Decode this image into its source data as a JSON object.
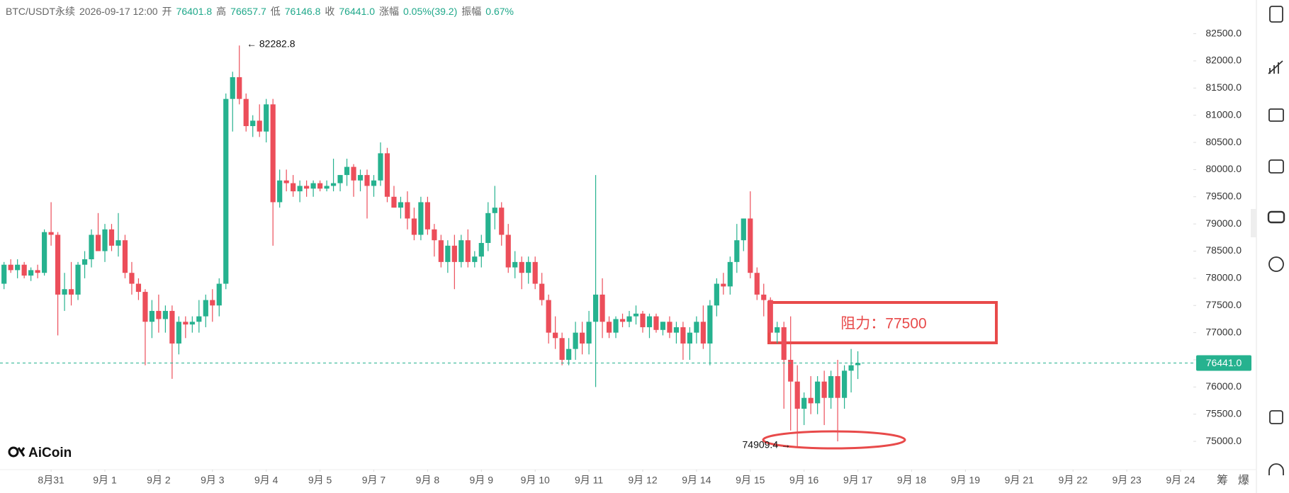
{
  "header": {
    "symbol": "BTC/USDT永续",
    "time": "2026-09-17 12:00",
    "fields": [
      {
        "label": "开",
        "value": "76401.8"
      },
      {
        "label": "高",
        "value": "76657.7"
      },
      {
        "label": "低",
        "value": "76146.8"
      },
      {
        "label": "收",
        "value": "76441.0"
      },
      {
        "label": "涨幅",
        "value": "0.05%(39.2)"
      },
      {
        "label": "振幅",
        "value": "0.67%"
      }
    ]
  },
  "chart_data": {
    "type": "candlestick",
    "up_color": "#26b28f",
    "down_color": "#ec4e5a",
    "xlim": [
      -0.6,
      176.9
    ],
    "ylim": [
      74480,
      83120
    ],
    "xticks": [
      {
        "value": 7,
        "label": "8月31"
      },
      {
        "value": 15,
        "label": "9月 1"
      },
      {
        "value": 23,
        "label": "9月 2"
      },
      {
        "value": 31,
        "label": "9月 3"
      },
      {
        "value": 39,
        "label": "9月 4"
      },
      {
        "value": 47,
        "label": "9月 5"
      },
      {
        "value": 55,
        "label": "9月 7"
      },
      {
        "value": 63,
        "label": "9月 8"
      },
      {
        "value": 71,
        "label": "9月 9"
      },
      {
        "value": 79,
        "label": "9月 10"
      },
      {
        "value": 87,
        "label": "9月 11"
      },
      {
        "value": 95,
        "label": "9月 12"
      },
      {
        "value": 103,
        "label": "9月 14"
      },
      {
        "value": 111,
        "label": "9月 15"
      },
      {
        "value": 119,
        "label": "9月 16"
      },
      {
        "value": 127,
        "label": "9月 17"
      },
      {
        "value": 135,
        "label": "9月 18"
      },
      {
        "value": 143,
        "label": "9月 19"
      },
      {
        "value": 151,
        "label": "9月 21"
      },
      {
        "value": 159,
        "label": "9月 22"
      },
      {
        "value": 167,
        "label": "9月 23"
      },
      {
        "value": 175,
        "label": "9月 24"
      }
    ],
    "yticks": [
      {
        "value": 75000,
        "label": "75000.0"
      },
      {
        "value": 75500,
        "label": "75500.0"
      },
      {
        "value": 76000,
        "label": "76000.0"
      },
      {
        "value": 76500,
        "label": "76500.0"
      },
      {
        "value": 77000,
        "label": "77000.0"
      },
      {
        "value": 77500,
        "label": "77500.0"
      },
      {
        "value": 78000,
        "label": "78000.0"
      },
      {
        "value": 78500,
        "label": "78500.0"
      },
      {
        "value": 79000,
        "label": "79000.0"
      },
      {
        "value": 79500,
        "label": "79500.0"
      },
      {
        "value": 80000,
        "label": "80000.0"
      },
      {
        "value": 80500,
        "label": "80500.0"
      },
      {
        "value": 81000,
        "label": "81000.0"
      },
      {
        "value": 81500,
        "label": "81500.0"
      },
      {
        "value": 82000,
        "label": "82000.0"
      },
      {
        "value": 82500,
        "label": "82500.0"
      }
    ],
    "open": [
      77900,
      78250,
      78150,
      78250,
      78050,
      78150,
      78100,
      78850,
      78800,
      77700,
      77800,
      77700,
      78250,
      78350,
      78800,
      78500,
      78900,
      78600,
      78700,
      78100,
      77900,
      77750,
      77200,
      77400,
      77250,
      77400,
      76800,
      77200,
      77150,
      77200,
      77300,
      77600,
      77500,
      77900,
      81300,
      81700,
      81300,
      80800,
      80900,
      80700,
      81200,
      79400,
      79800,
      79750,
      79600,
      79700,
      79650,
      79750,
      79650,
      79700,
      79750,
      79900,
      80050,
      79800,
      79900,
      79700,
      79800,
      80300,
      79500,
      79300,
      79400,
      79100,
      78800,
      79400,
      78900,
      78700,
      78300,
      78600,
      78300,
      78700,
      78300,
      78400,
      78650,
      79200,
      79300,
      78800,
      78200,
      78300,
      78100,
      78300,
      77900,
      77600,
      77000,
      76900,
      76500,
      76700,
      77000,
      76800,
      77200,
      77700,
      77200,
      77000,
      77250,
      77200,
      77300,
      77350,
      77100,
      77300,
      77050,
      77200,
      77000,
      77100,
      76800,
      77000,
      77200,
      76800,
      77500,
      77900,
      77850,
      78300,
      78700,
      79100,
      78100,
      77700,
      77600,
      77000,
      77100,
      76500,
      76100,
      75600,
      75800,
      75700,
      76100,
      75800,
      76200,
      75800,
      76300,
      76401.8
    ],
    "high": [
      78300,
      78350,
      78350,
      78300,
      78200,
      78250,
      78900,
      79400,
      78850,
      78100,
      78300,
      78300,
      78500,
      78900,
      79200,
      79000,
      79000,
      79200,
      78800,
      78300,
      78000,
      77800,
      77600,
      77700,
      77500,
      77500,
      77300,
      77300,
      77300,
      77600,
      77700,
      77800,
      78000,
      81400,
      81800,
      82282.8,
      81400,
      81000,
      81200,
      81300,
      81300,
      80000,
      80000,
      79900,
      79800,
      79800,
      79800,
      79800,
      79800,
      80200,
      79900,
      80200,
      80100,
      80000,
      80000,
      79900,
      80500,
      80400,
      79700,
      79500,
      79600,
      79300,
      79500,
      79500,
      79000,
      78800,
      78700,
      78800,
      78800,
      78900,
      78500,
      78800,
      79400,
      79700,
      79400,
      79000,
      78500,
      78400,
      78400,
      78400,
      78100,
      77700,
      77300,
      77000,
      76900,
      77200,
      77200,
      77400,
      79900,
      78000,
      77300,
      77300,
      77350,
      77400,
      77500,
      77400,
      77350,
      77350,
      77200,
      77300,
      77200,
      77200,
      77100,
      77300,
      77500,
      77600,
      78000,
      78100,
      78400,
      79000,
      79100,
      79600,
      78200,
      77900,
      77650,
      77200,
      77200,
      77300,
      76400,
      75900,
      76200,
      76200,
      76300,
      76300,
      76500,
      76400,
      76700,
      76657.7
    ],
    "low": [
      77800,
      78100,
      78000,
      78000,
      77950,
      78000,
      78050,
      78600,
      76950,
      77400,
      77500,
      77600,
      78000,
      78200,
      78500,
      78300,
      78500,
      78400,
      78000,
      77700,
      77600,
      76400,
      76900,
      77000,
      77000,
      76150,
      76600,
      76900,
      77000,
      77000,
      77100,
      77200,
      77300,
      77800,
      80700,
      81200,
      80700,
      80600,
      80600,
      80500,
      78600,
      79300,
      79600,
      79500,
      79400,
      79500,
      79500,
      79600,
      79600,
      79600,
      79600,
      79700,
      79500,
      79600,
      79100,
      79500,
      79700,
      79400,
      79300,
      79100,
      78900,
      78700,
      78700,
      78800,
      78400,
      78200,
      78100,
      77800,
      78200,
      78200,
      78200,
      78200,
      78500,
      78900,
      78600,
      78100,
      78000,
      77800,
      77900,
      77800,
      77500,
      76800,
      76700,
      76400,
      76400,
      76500,
      76600,
      76600,
      76000,
      76900,
      76900,
      76900,
      77100,
      77100,
      77150,
      77000,
      76900,
      77000,
      76950,
      76900,
      76800,
      76500,
      76500,
      76800,
      76700,
      76400,
      77300,
      77700,
      77700,
      78100,
      78500,
      78000,
      77600,
      77300,
      76800,
      76800,
      75600,
      75200,
      74909.4,
      75300,
      75500,
      75500,
      75300,
      75600,
      75000,
      75600,
      75900,
      76146.8
    ],
    "close": [
      78250,
      78150,
      78250,
      78050,
      78150,
      78100,
      78850,
      78800,
      77700,
      77800,
      77700,
      78250,
      78350,
      78800,
      78500,
      78900,
      78600,
      78700,
      78100,
      77900,
      77750,
      77200,
      77400,
      77250,
      77400,
      76800,
      77200,
      77150,
      77200,
      77300,
      77600,
      77500,
      77900,
      81300,
      81700,
      81300,
      80800,
      80900,
      80700,
      81200,
      79400,
      79800,
      79750,
      79600,
      79700,
      79650,
      79750,
      79650,
      79700,
      79750,
      79900,
      80050,
      79800,
      79900,
      79700,
      79800,
      80300,
      79500,
      79300,
      79400,
      79100,
      78800,
      79400,
      78900,
      78700,
      78300,
      78600,
      78300,
      78700,
      78300,
      78400,
      78650,
      79200,
      79300,
      78800,
      78200,
      78300,
      78100,
      78300,
      77900,
      77600,
      77000,
      76900,
      76500,
      76700,
      77000,
      76800,
      77200,
      77700,
      77200,
      77000,
      77250,
      77200,
      77300,
      77350,
      77100,
      77300,
      77050,
      77200,
      77000,
      77100,
      76800,
      77000,
      77200,
      76800,
      77500,
      77900,
      77850,
      78300,
      78700,
      79100,
      78100,
      77700,
      77600,
      77000,
      77100,
      76500,
      76100,
      75600,
      75800,
      75700,
      76100,
      75800,
      76200,
      75800,
      76300,
      76400,
      76441
    ],
    "last_price": {
      "value": 76441,
      "label": "76441.0"
    },
    "annotations": {
      "max": "← 82282.8",
      "min": "74909.4 →",
      "resistance": "阻力：77500"
    },
    "logo": "AiCoin",
    "side_labels": [
      "筹",
      "爆"
    ]
  }
}
